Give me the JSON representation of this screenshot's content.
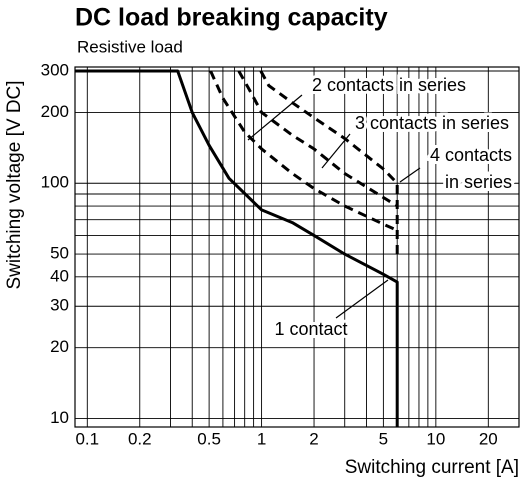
{
  "chart_data": {
    "type": "line",
    "title": "DC load breaking capacity",
    "subtitle": "Resistive load",
    "x_label": "Switching current [A]",
    "y_label": "Switching voltage [V DC]",
    "log_x": true,
    "log_y": true,
    "grid": true,
    "xlim": [
      0.085,
      30
    ],
    "ylim": [
      9.2,
      312
    ],
    "xticks": [
      0.1,
      0.2,
      0.5,
      1,
      2,
      5,
      10,
      20
    ],
    "yticks": [
      10,
      20,
      30,
      40,
      50,
      100,
      200,
      300
    ],
    "x_minor_grid": [
      0.3,
      0.4,
      0.6,
      0.7,
      0.8,
      0.9,
      3,
      4,
      6,
      7,
      8,
      9
    ],
    "y_minor_grid": [
      60,
      70,
      80,
      90
    ],
    "series": [
      {
        "name": "1 contact",
        "color": "#000000",
        "dashed": false,
        "x": [
          0.085,
          0.33,
          0.4,
          0.5,
          0.65,
          1,
          1.5,
          2,
          3,
          5,
          6,
          6
        ],
        "values": [
          300,
          300,
          200,
          145,
          105,
          77,
          68,
          60,
          50,
          41,
          38,
          9.2
        ]
      },
      {
        "name": "2 contacts in series",
        "color": "#000000",
        "dashed": true,
        "x": [
          0.51,
          0.6,
          0.8,
          1,
          1.5,
          2,
          3,
          5,
          6
        ],
        "values": [
          300,
          230,
          165,
          140,
          110,
          95,
          80,
          67,
          63
        ]
      },
      {
        "name": "3 contacts in series",
        "color": "#000000",
        "dashed": true,
        "x": [
          0.74,
          0.85,
          1,
          1.5,
          2,
          3,
          5,
          6
        ],
        "values": [
          300,
          250,
          200,
          160,
          140,
          110,
          87,
          80
        ]
      },
      {
        "name": "4 contacts in series",
        "color": "#000000",
        "dashed": true,
        "x": [
          0.99,
          1.1,
          1.5,
          2,
          3,
          5,
          6,
          6
        ],
        "values": [
          300,
          260,
          220,
          190,
          155,
          115,
          100,
          50
        ]
      }
    ]
  }
}
